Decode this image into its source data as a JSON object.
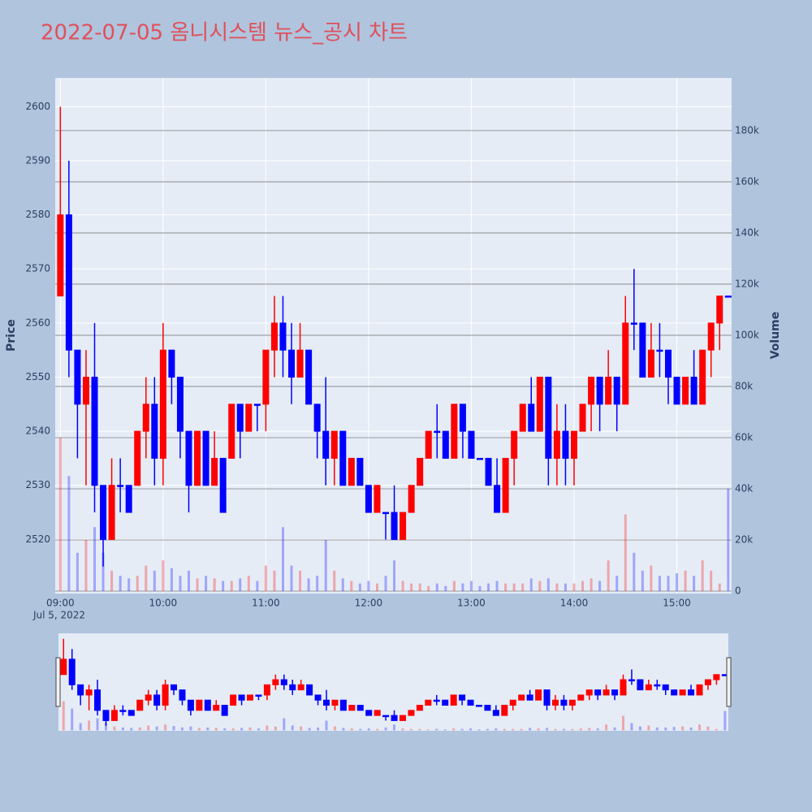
{
  "chart_data": {
    "type": "candlestick",
    "title": "2022-07-05 옴니시스템 뉴스_공시 차트",
    "ylabel": "Price",
    "y2label": "Volume",
    "date_label": "Jul 5, 2022",
    "increasing_color": "#ff0000",
    "decreasing_color": "#0000ff",
    "x": [
      "2022-07-05 09:00",
      "2022-07-05 09:05",
      "2022-07-05 09:10",
      "2022-07-05 09:15",
      "2022-07-05 09:20",
      "2022-07-05 09:25",
      "2022-07-05 09:30",
      "2022-07-05 09:35",
      "2022-07-05 09:40",
      "2022-07-05 09:45",
      "2022-07-05 09:50",
      "2022-07-05 09:55",
      "2022-07-05 10:00",
      "2022-07-05 10:05",
      "2022-07-05 10:10",
      "2022-07-05 10:15",
      "2022-07-05 10:20",
      "2022-07-05 10:25",
      "2022-07-05 10:30",
      "2022-07-05 10:35",
      "2022-07-05 10:40",
      "2022-07-05 10:45",
      "2022-07-05 10:50",
      "2022-07-05 10:55",
      "2022-07-05 11:00",
      "2022-07-05 11:05",
      "2022-07-05 11:10",
      "2022-07-05 11:15",
      "2022-07-05 11:20",
      "2022-07-05 11:25",
      "2022-07-05 11:30",
      "2022-07-05 11:35",
      "2022-07-05 11:40",
      "2022-07-05 11:45",
      "2022-07-05 11:50",
      "2022-07-05 11:55",
      "2022-07-05 12:00",
      "2022-07-05 12:05",
      "2022-07-05 12:10",
      "2022-07-05 12:15",
      "2022-07-05 12:20",
      "2022-07-05 12:25",
      "2022-07-05 12:30",
      "2022-07-05 12:35",
      "2022-07-05 12:40",
      "2022-07-05 12:45",
      "2022-07-05 12:50",
      "2022-07-05 12:55",
      "2022-07-05 13:00",
      "2022-07-05 13:05",
      "2022-07-05 13:10",
      "2022-07-05 13:15",
      "2022-07-05 13:20",
      "2022-07-05 13:25",
      "2022-07-05 13:30",
      "2022-07-05 13:35",
      "2022-07-05 13:40",
      "2022-07-05 13:45",
      "2022-07-05 13:50",
      "2022-07-05 13:55",
      "2022-07-05 14:00",
      "2022-07-05 14:05",
      "2022-07-05 14:10",
      "2022-07-05 14:15",
      "2022-07-05 14:20",
      "2022-07-05 14:25",
      "2022-07-05 14:30",
      "2022-07-05 14:35",
      "2022-07-05 14:40",
      "2022-07-05 14:45",
      "2022-07-05 14:50",
      "2022-07-05 14:55",
      "2022-07-05 15:00",
      "2022-07-05 15:05",
      "2022-07-05 15:10",
      "2022-07-05 15:15",
      "2022-07-05 15:20",
      "2022-07-05 15:25",
      "2022-07-05 15:30"
    ],
    "open": [
      2565,
      2580,
      2555,
      2545,
      2550,
      2530,
      2520,
      2530,
      2530,
      2530,
      2540,
      2545,
      2535,
      2555,
      2550,
      2540,
      2530,
      2540,
      2530,
      2535,
      2535,
      2545,
      2540,
      2545,
      2545,
      2555,
      2560,
      2555,
      2550,
      2555,
      2545,
      2540,
      2535,
      2540,
      2530,
      2535,
      2530,
      2525,
      2525,
      2525,
      2520,
      2525,
      2530,
      2535,
      2540,
      2540,
      2535,
      2545,
      2540,
      2535,
      2535,
      2530,
      2525,
      2535,
      2540,
      2545,
      2540,
      2550,
      2535,
      2540,
      2535,
      2540,
      2545,
      2550,
      2545,
      2550,
      2545,
      2560,
      2560,
      2550,
      2555,
      2555,
      2550,
      2545,
      2550,
      2545,
      2555,
      2560,
      2565
    ],
    "high": [
      2600,
      2590,
      2555,
      2555,
      2560,
      2530,
      2535,
      2535,
      2530,
      2540,
      2550,
      2550,
      2560,
      2555,
      2550,
      2540,
      2540,
      2540,
      2540,
      2535,
      2545,
      2545,
      2545,
      2545,
      2555,
      2565,
      2565,
      2560,
      2560,
      2555,
      2545,
      2550,
      2540,
      2540,
      2535,
      2535,
      2530,
      2530,
      2525,
      2530,
      2525,
      2530,
      2535,
      2540,
      2545,
      2540,
      2545,
      2545,
      2540,
      2535,
      2535,
      2535,
      2535,
      2540,
      2545,
      2550,
      2550,
      2550,
      2545,
      2545,
      2540,
      2545,
      2550,
      2550,
      2555,
      2550,
      2565,
      2570,
      2560,
      2560,
      2560,
      2555,
      2550,
      2550,
      2555,
      2555,
      2560,
      2565,
      2565
    ],
    "low": [
      2565,
      2550,
      2535,
      2530,
      2525,
      2515,
      2520,
      2525,
      2525,
      2530,
      2535,
      2530,
      2530,
      2545,
      2535,
      2525,
      2530,
      2530,
      2530,
      2525,
      2535,
      2535,
      2540,
      2540,
      2540,
      2550,
      2550,
      2545,
      2550,
      2545,
      2535,
      2530,
      2530,
      2530,
      2530,
      2530,
      2525,
      2525,
      2520,
      2520,
      2520,
      2525,
      2530,
      2535,
      2535,
      2535,
      2535,
      2535,
      2535,
      2535,
      2530,
      2525,
      2525,
      2530,
      2540,
      2540,
      2540,
      2530,
      2530,
      2530,
      2530,
      2540,
      2540,
      2540,
      2545,
      2540,
      2545,
      2555,
      2550,
      2550,
      2550,
      2545,
      2545,
      2545,
      2545,
      2545,
      2550,
      2555,
      2565
    ],
    "close": [
      2580,
      2555,
      2545,
      2550,
      2530,
      2520,
      2530,
      2530,
      2525,
      2540,
      2545,
      2535,
      2555,
      2550,
      2540,
      2530,
      2540,
      2530,
      2535,
      2525,
      2545,
      2540,
      2545,
      2545,
      2555,
      2560,
      2555,
      2550,
      2555,
      2545,
      2540,
      2535,
      2540,
      2530,
      2535,
      2530,
      2525,
      2530,
      2525,
      2520,
      2525,
      2530,
      2535,
      2540,
      2540,
      2535,
      2545,
      2540,
      2535,
      2535,
      2530,
      2525,
      2535,
      2540,
      2545,
      2540,
      2550,
      2535,
      2540,
      2535,
      2540,
      2545,
      2550,
      2545,
      2550,
      2545,
      2560,
      2560,
      2550,
      2555,
      2555,
      2550,
      2545,
      2550,
      2545,
      2555,
      2560,
      2565,
      2565
    ],
    "volume": [
      60000,
      45000,
      15000,
      20000,
      25000,
      15000,
      8000,
      6000,
      5000,
      6000,
      10000,
      8000,
      12000,
      9000,
      6000,
      8000,
      5000,
      6000,
      5000,
      4000,
      4000,
      5000,
      6000,
      4000,
      10000,
      8000,
      25000,
      10000,
      8000,
      5000,
      6000,
      20000,
      8000,
      5000,
      4000,
      3000,
      4000,
      3000,
      6000,
      12000,
      4000,
      3000,
      3000,
      2000,
      3000,
      2000,
      4000,
      3000,
      4000,
      2000,
      3000,
      4000,
      3000,
      3000,
      3000,
      5000,
      4000,
      5000,
      3000,
      3000,
      3000,
      4000,
      5000,
      4000,
      12000,
      6000,
      30000,
      15000,
      8000,
      10000,
      6000,
      6000,
      7000,
      8000,
      6000,
      12000,
      8000,
      3000,
      40000
    ],
    "xlim": [
      "2022-07-05 08:57",
      "2022-07-05 15:32"
    ],
    "xticks": [
      {
        "value": "2022-07-05 09:00",
        "label": "09:00"
      },
      {
        "value": "2022-07-05 10:00",
        "label": "10:00"
      },
      {
        "value": "2022-07-05 11:00",
        "label": "11:00"
      },
      {
        "value": "2022-07-05 12:00",
        "label": "12:00"
      },
      {
        "value": "2022-07-05 13:00",
        "label": "13:00"
      },
      {
        "value": "2022-07-05 14:00",
        "label": "14:00"
      },
      {
        "value": "2022-07-05 15:00",
        "label": "15:00"
      }
    ],
    "ylim": [
      2510,
      2605.3
    ],
    "yticks": [
      2520,
      2530,
      2540,
      2550,
      2560,
      2570,
      2580,
      2590,
      2600
    ],
    "y2lim": [
      -950,
      200600
    ],
    "y2ticks": [
      0,
      {
        "value": 20000,
        "label": "20k"
      },
      {
        "value": 40000,
        "label": "40k"
      },
      {
        "value": 60000,
        "label": "60k"
      },
      {
        "value": 80000,
        "label": "80k"
      },
      {
        "value": 100000,
        "label": "100k"
      },
      {
        "value": 120000,
        "label": "120k"
      },
      {
        "value": 140000,
        "label": "140k"
      },
      {
        "value": 160000,
        "label": "160k"
      },
      {
        "value": 180000,
        "label": "180k"
      }
    ],
    "grid": true,
    "rangeslider": true
  }
}
